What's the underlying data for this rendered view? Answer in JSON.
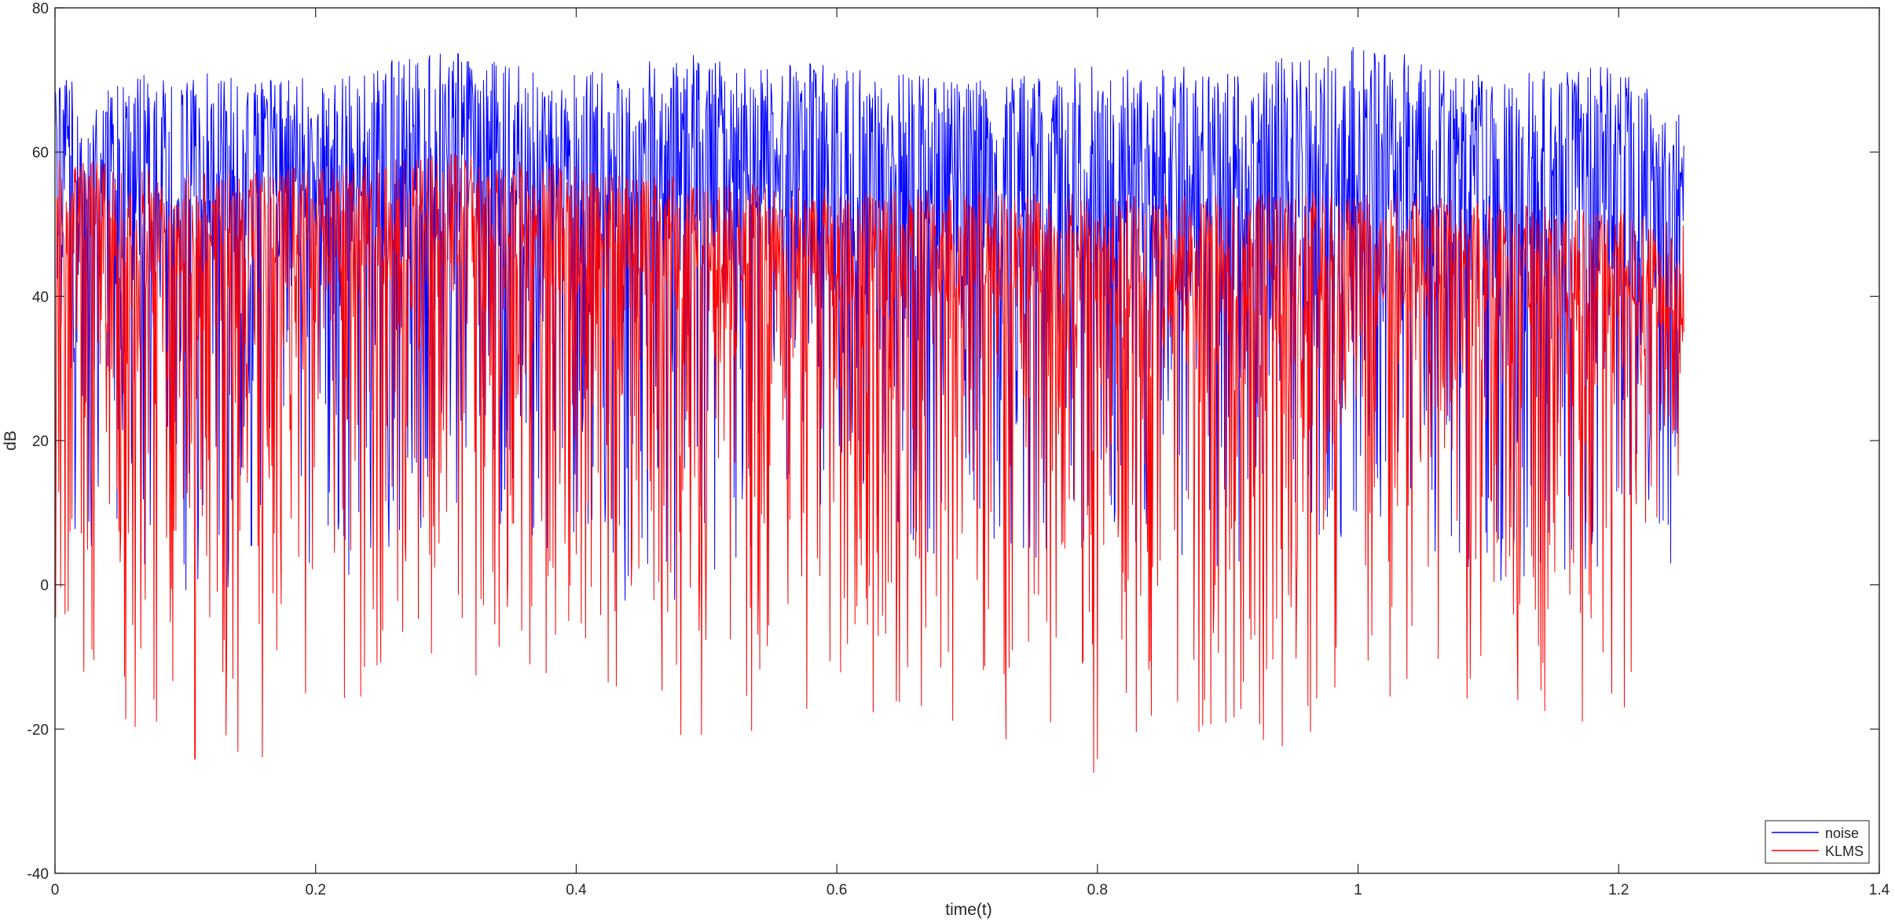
{
  "chart_data": {
    "type": "line",
    "title": "",
    "xlabel": "time(t)",
    "ylabel": "dB",
    "xlim": [
      0,
      1.4
    ],
    "ylim": [
      -40,
      80
    ],
    "xticks": [
      0,
      0.2,
      0.4,
      0.6,
      0.8,
      1,
      1.2,
      1.4
    ],
    "xtick_labels": [
      "0",
      "0.2",
      "0.4",
      "0.6",
      "0.8",
      "1",
      "1.2",
      "1.4"
    ],
    "yticks": [
      -40,
      -20,
      0,
      20,
      40,
      60,
      80
    ],
    "ytick_labels": [
      "-40",
      "-20",
      "0",
      "20",
      "40",
      "60",
      "80"
    ],
    "grid": false,
    "legend_position": "bottom-right",
    "series": [
      {
        "name": "noise",
        "color": "#0000ff",
        "t_range": [
          0,
          1.25
        ],
        "envelope": {
          "t": [
            0,
            0.1,
            0.2,
            0.3,
            0.4,
            0.5,
            0.6,
            0.7,
            0.8,
            0.9,
            1.0,
            1.1,
            1.2,
            1.25
          ],
          "upper": [
            70,
            71,
            71,
            74,
            71,
            74,
            72,
            70,
            72,
            72,
            75,
            71,
            72,
            65
          ],
          "center": [
            55,
            54,
            55,
            56,
            55,
            54,
            55,
            55,
            54,
            52,
            53,
            52,
            52,
            50
          ],
          "lower": [
            8,
            -3,
            -3,
            10,
            -3,
            -3,
            10,
            2,
            5,
            2,
            5,
            -3,
            2,
            3
          ]
        }
      },
      {
        "name": "KLMS",
        "color": "#ff0000",
        "t_range": [
          0,
          1.25
        ],
        "envelope": {
          "t": [
            0,
            0.1,
            0.2,
            0.3,
            0.4,
            0.5,
            0.6,
            0.7,
            0.8,
            0.9,
            1.0,
            1.1,
            1.2,
            1.25
          ],
          "upper": [
            60,
            57,
            58,
            60,
            58,
            56,
            55,
            55,
            54,
            54,
            55,
            53,
            52,
            50
          ],
          "center": [
            46,
            45,
            46,
            45,
            44,
            44,
            43,
            42,
            42,
            40,
            41,
            40,
            40,
            38
          ],
          "lower": [
            -9,
            -29,
            -21,
            -14,
            -12,
            -23,
            -18,
            -19,
            -30,
            -24,
            -22,
            -15,
            -22,
            18
          ]
        }
      }
    ],
    "legend": {
      "entries": [
        "noise",
        "KLMS"
      ]
    }
  }
}
